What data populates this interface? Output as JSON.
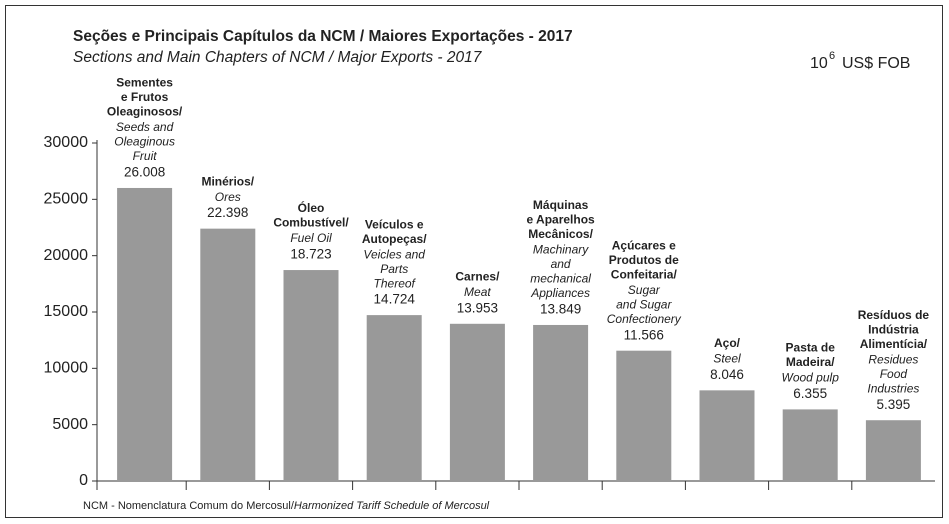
{
  "chart_data": {
    "type": "bar",
    "title": "Seções e Principais Capítulos da NCM / Maiores Exportações - 2017",
    "subtitle": "Sections and Main Chapters of NCM / Major Exports - 2017",
    "unit": {
      "base": "10",
      "exp": "6",
      "text": "US$ FOB"
    },
    "categories": [
      {
        "pt": [
          "Sementes",
          "e Frutos",
          "Oleaginosos/"
        ],
        "en": [
          "Seeds and",
          "Oleaginous",
          "Fruit"
        ]
      },
      {
        "pt": [
          "Minérios/"
        ],
        "en": [
          "Ores"
        ]
      },
      {
        "pt": [
          "Óleo",
          "Combustível/"
        ],
        "en": [
          "Fuel Oil"
        ]
      },
      {
        "pt": [
          "Veículos e",
          "Autopeças/"
        ],
        "en": [
          "Veicles and",
          "Parts",
          "Thereof"
        ]
      },
      {
        "pt": [
          "Carnes/"
        ],
        "en": [
          "Meat"
        ]
      },
      {
        "pt": [
          "Máquinas",
          "e Aparelhos",
          "Mecânicos/"
        ],
        "en": [
          "Machinary",
          "and",
          "mechanical",
          "Appliances"
        ]
      },
      {
        "pt": [
          "Açúcares e",
          "Produtos de",
          "Confeitaria/"
        ],
        "en": [
          "Sugar",
          "and Sugar",
          "Confectionery"
        ]
      },
      {
        "pt": [
          "Aço/"
        ],
        "en": [
          "Steel"
        ]
      },
      {
        "pt": [
          "Pasta de",
          "Madeira/"
        ],
        "en": [
          "Wood pulp"
        ]
      },
      {
        "pt": [
          "Resíduos de",
          "Indústria",
          "Alimentícia/"
        ],
        "en": [
          "Residues",
          "Food",
          "Industries"
        ]
      }
    ],
    "values": [
      26008,
      22398,
      18723,
      14724,
      13953,
      13849,
      11566,
      8046,
      6355,
      5395
    ],
    "value_labels": [
      "26.008",
      "22.398",
      "18.723",
      "14.724",
      "13.953",
      "13.849",
      "11.566",
      "8.046",
      "6.355",
      "5.395"
    ],
    "color": "#999999",
    "ylim": [
      0,
      30000
    ],
    "yticks": [
      0,
      5000,
      10000,
      15000,
      20000,
      25000,
      30000
    ],
    "grid": false,
    "footnote": {
      "plain": "NCM - Nomenclatura Comum do Mercosul/",
      "italic": "Harmonized Tariff Schedule of Mercosul"
    }
  }
}
